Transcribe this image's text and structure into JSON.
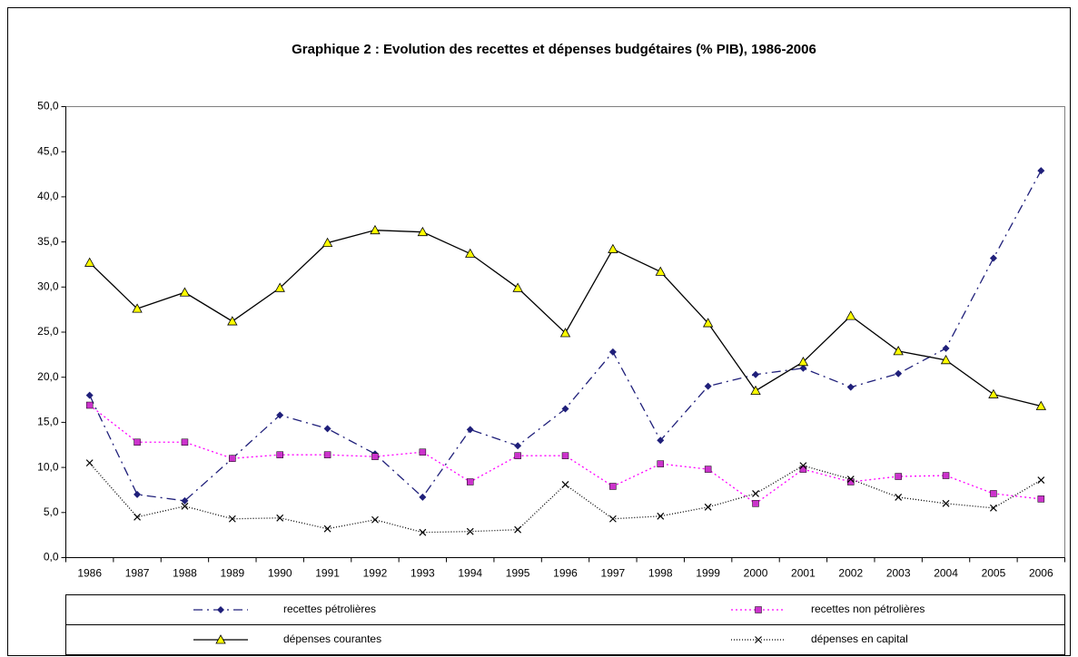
{
  "chart_data": {
    "type": "line",
    "title": "Graphique 2  : Evolution des recettes et dépenses budgétaires (% PIB), 1986-2006",
    "categories": [
      "1986",
      "1987",
      "1988",
      "1989",
      "1990",
      "1991",
      "1992",
      "1993",
      "1994",
      "1995",
      "1996",
      "1997",
      "1998",
      "1999",
      "2000",
      "2001",
      "2002",
      "2003",
      "2004",
      "2005",
      "2006"
    ],
    "ylim": [
      0,
      50
    ],
    "yticks": [
      {
        "value": 0,
        "label": "0,0"
      },
      {
        "value": 5,
        "label": "5,0"
      },
      {
        "value": 10,
        "label": "10,0"
      },
      {
        "value": 15,
        "label": "15,0"
      },
      {
        "value": 20,
        "label": "20,0"
      },
      {
        "value": 25,
        "label": "25,0"
      },
      {
        "value": 30,
        "label": "30,0"
      },
      {
        "value": 35,
        "label": "35,0"
      },
      {
        "value": 40,
        "label": "40,0"
      },
      {
        "value": 45,
        "label": "45,0"
      },
      {
        "value": 50,
        "label": "50,0"
      }
    ],
    "grid": false,
    "legend": "bottom",
    "series": [
      {
        "name": "recettes pétrolières",
        "color": "#1f1f7a",
        "marker": "diamond",
        "marker_color": "#1f1f7a",
        "dash": "10 5 2 5",
        "values": [
          18.0,
          7.0,
          6.3,
          11.0,
          15.8,
          14.3,
          11.5,
          6.7,
          14.2,
          12.4,
          16.5,
          22.8,
          13.0,
          19.0,
          20.3,
          21.0,
          18.9,
          20.4,
          23.2,
          33.2,
          42.9
        ]
      },
      {
        "name": "recettes non pétrolières",
        "color": "#ff00ff",
        "marker": "square",
        "marker_color": "#cc33cc",
        "dash": "2 3",
        "values": [
          16.9,
          12.8,
          12.8,
          11.0,
          11.4,
          11.4,
          11.2,
          11.7,
          8.4,
          11.3,
          11.3,
          7.9,
          10.4,
          9.8,
          6.0,
          9.8,
          8.4,
          9.0,
          9.1,
          7.1,
          6.5
        ]
      },
      {
        "name": "dépenses courantes",
        "color": "#000000",
        "marker": "triangle",
        "marker_color": "#ffff00",
        "dash": "none",
        "values": [
          32.7,
          27.6,
          29.4,
          26.2,
          29.9,
          34.9,
          36.3,
          36.1,
          33.7,
          29.9,
          24.9,
          34.2,
          31.7,
          26.0,
          18.5,
          21.7,
          26.8,
          22.9,
          21.9,
          18.1,
          16.8
        ]
      },
      {
        "name": "dépenses en capital",
        "color": "#000000",
        "marker": "x",
        "marker_color": "#000000",
        "dash": "1 2",
        "values": [
          10.5,
          4.5,
          5.7,
          4.3,
          4.4,
          3.2,
          4.2,
          2.8,
          2.9,
          3.1,
          8.1,
          4.3,
          4.6,
          5.6,
          7.1,
          10.2,
          8.7,
          6.7,
          6.0,
          5.5,
          8.6
        ]
      }
    ]
  }
}
